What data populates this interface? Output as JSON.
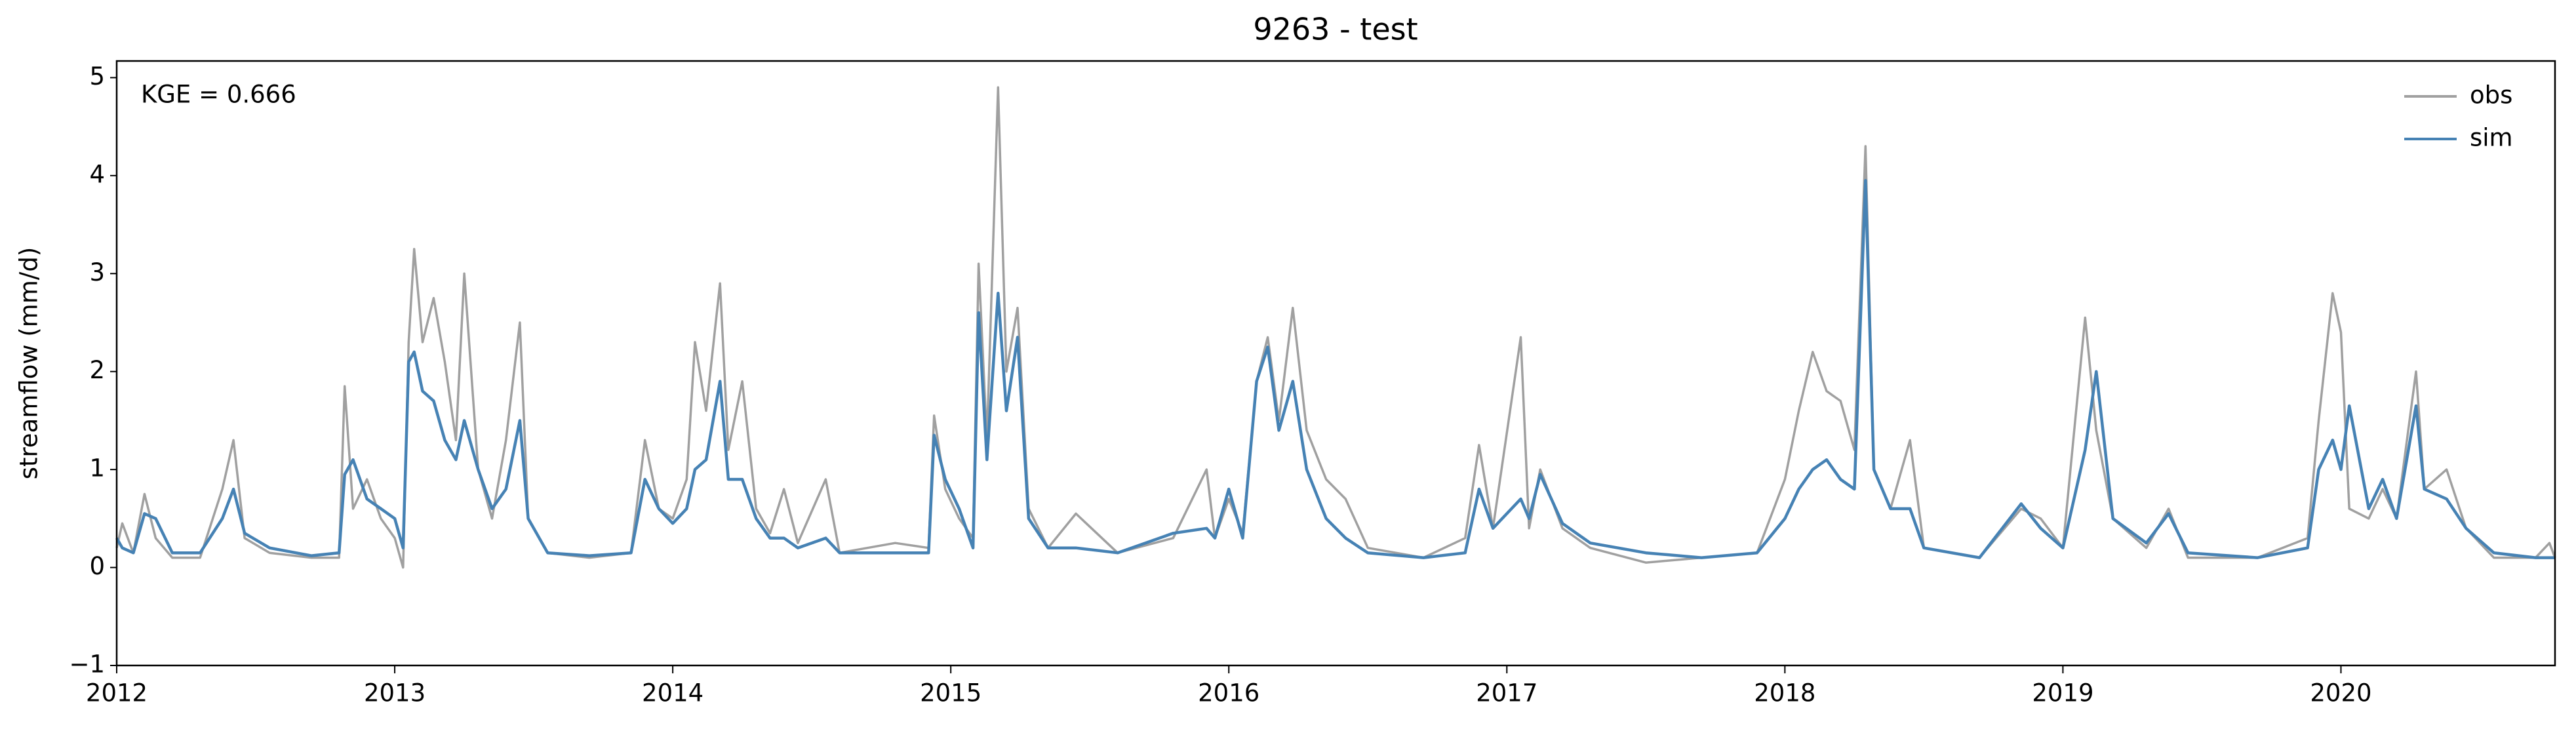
{
  "chart_data": {
    "type": "line",
    "title": "9263 - test",
    "ylabel": "streamflow (mm/d)",
    "annotation": "KGE = 0.666",
    "legend": "upper right",
    "xlim": [
      2012,
      2020.77
    ],
    "xticks": [
      2012,
      2013,
      2014,
      2015,
      2016,
      2017,
      2018,
      2019,
      2020
    ],
    "ylim": [
      -1,
      5.17
    ],
    "yticks": [
      {
        "value": -1,
        "label": "−1"
      },
      0,
      1,
      2,
      3,
      4,
      5
    ],
    "x": [
      2012.0,
      2012.02,
      2012.06,
      2012.1,
      2012.14,
      2012.2,
      2012.3,
      2012.38,
      2012.42,
      2012.46,
      2012.55,
      2012.7,
      2012.8,
      2012.82,
      2012.85,
      2012.9,
      2012.95,
      2013.0,
      2013.03,
      2013.05,
      2013.07,
      2013.1,
      2013.14,
      2013.18,
      2013.22,
      2013.25,
      2013.3,
      2013.35,
      2013.4,
      2013.45,
      2013.48,
      2013.55,
      2013.7,
      2013.85,
      2013.9,
      2013.95,
      2014.0,
      2014.05,
      2014.08,
      2014.12,
      2014.17,
      2014.2,
      2014.25,
      2014.3,
      2014.35,
      2014.4,
      2014.45,
      2014.55,
      2014.6,
      2014.8,
      2014.92,
      2014.94,
      2014.98,
      2015.03,
      2015.08,
      2015.1,
      2015.13,
      2015.17,
      2015.2,
      2015.24,
      2015.28,
      2015.35,
      2015.45,
      2015.6,
      2015.8,
      2015.92,
      2015.95,
      2016.0,
      2016.05,
      2016.1,
      2016.14,
      2016.18,
      2016.23,
      2016.28,
      2016.35,
      2016.42,
      2016.5,
      2016.7,
      2016.85,
      2016.9,
      2016.95,
      2017.05,
      2017.08,
      2017.12,
      2017.2,
      2017.3,
      2017.5,
      2017.7,
      2017.9,
      2018.0,
      2018.05,
      2018.1,
      2018.15,
      2018.2,
      2018.25,
      2018.29,
      2018.32,
      2018.38,
      2018.45,
      2018.5,
      2018.7,
      2018.85,
      2018.92,
      2019.0,
      2019.08,
      2019.12,
      2019.18,
      2019.3,
      2019.38,
      2019.45,
      2019.7,
      2019.88,
      2019.92,
      2019.97,
      2020.0,
      2020.03,
      2020.1,
      2020.15,
      2020.2,
      2020.27,
      2020.3,
      2020.38,
      2020.45,
      2020.55,
      2020.7,
      2020.75,
      2020.77
    ],
    "series": [
      {
        "name": "obs",
        "color": "#a0a0a0",
        "values": [
          0.2,
          0.45,
          0.15,
          0.75,
          0.3,
          0.1,
          0.1,
          0.8,
          1.3,
          0.3,
          0.15,
          0.1,
          0.1,
          1.85,
          0.6,
          0.9,
          0.5,
          0.3,
          0.0,
          2.3,
          3.25,
          2.3,
          2.75,
          2.1,
          1.3,
          3.0,
          1.0,
          0.5,
          1.3,
          2.5,
          0.5,
          0.15,
          0.1,
          0.15,
          1.3,
          0.6,
          0.5,
          0.9,
          2.3,
          1.6,
          2.9,
          1.2,
          1.9,
          0.6,
          0.35,
          0.8,
          0.25,
          0.9,
          0.15,
          0.25,
          0.2,
          1.55,
          0.8,
          0.5,
          0.3,
          3.1,
          1.3,
          4.9,
          2.0,
          2.65,
          0.6,
          0.2,
          0.55,
          0.15,
          0.3,
          1.0,
          0.3,
          0.7,
          0.35,
          1.9,
          2.35,
          1.5,
          2.65,
          1.4,
          0.9,
          0.7,
          0.2,
          0.1,
          0.3,
          1.25,
          0.4,
          2.35,
          0.4,
          1.0,
          0.4,
          0.2,
          0.05,
          0.1,
          0.15,
          0.9,
          1.6,
          2.2,
          1.8,
          1.7,
          1.2,
          4.3,
          1.0,
          0.6,
          1.3,
          0.2,
          0.1,
          0.6,
          0.5,
          0.2,
          2.55,
          1.4,
          0.5,
          0.2,
          0.6,
          0.1,
          0.1,
          0.3,
          1.5,
          2.8,
          2.4,
          0.6,
          0.5,
          0.8,
          0.5,
          2.0,
          0.8,
          1.0,
          0.4,
          0.1,
          0.1,
          0.25,
          0.1
        ]
      },
      {
        "name": "sim",
        "color": "#4682b4",
        "values": [
          0.3,
          0.2,
          0.15,
          0.55,
          0.5,
          0.15,
          0.15,
          0.5,
          0.8,
          0.35,
          0.2,
          0.12,
          0.15,
          0.95,
          1.1,
          0.7,
          0.6,
          0.5,
          0.2,
          2.1,
          2.2,
          1.8,
          1.7,
          1.3,
          1.1,
          1.5,
          1.0,
          0.6,
          0.8,
          1.5,
          0.5,
          0.15,
          0.12,
          0.15,
          0.9,
          0.6,
          0.45,
          0.6,
          1.0,
          1.1,
          1.9,
          0.9,
          0.9,
          0.5,
          0.3,
          0.3,
          0.2,
          0.3,
          0.15,
          0.15,
          0.15,
          1.35,
          0.9,
          0.6,
          0.2,
          2.6,
          1.1,
          2.8,
          1.6,
          2.35,
          0.5,
          0.2,
          0.2,
          0.15,
          0.35,
          0.4,
          0.3,
          0.8,
          0.3,
          1.9,
          2.25,
          1.4,
          1.9,
          1.0,
          0.5,
          0.3,
          0.15,
          0.1,
          0.15,
          0.8,
          0.4,
          0.7,
          0.5,
          0.95,
          0.45,
          0.25,
          0.15,
          0.1,
          0.15,
          0.5,
          0.8,
          1.0,
          1.1,
          0.9,
          0.8,
          3.95,
          1.0,
          0.6,
          0.6,
          0.2,
          0.1,
          0.65,
          0.4,
          0.2,
          1.2,
          2.0,
          0.5,
          0.25,
          0.55,
          0.15,
          0.1,
          0.2,
          1.0,
          1.3,
          1.0,
          1.65,
          0.6,
          0.9,
          0.5,
          1.65,
          0.8,
          0.7,
          0.4,
          0.15,
          0.1,
          0.1,
          0.1
        ]
      }
    ]
  }
}
